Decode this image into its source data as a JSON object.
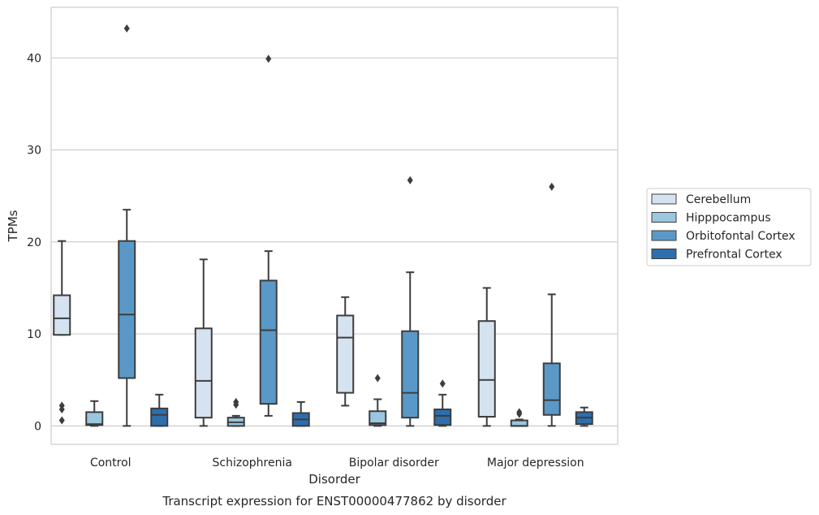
{
  "chart_data": {
    "type": "box",
    "title": "",
    "caption": "Transcript expression for ENST00000477862 by disorder",
    "xlabel": "Disorder",
    "ylabel": "TPMs",
    "ylim": [
      -2,
      45.5
    ],
    "yticks": [
      0,
      10,
      20,
      30,
      40
    ],
    "grid": "horizontal",
    "legend_position": "right",
    "categories": [
      "Control",
      "Schizophrenia",
      "Bipolar disorder",
      "Major depression"
    ],
    "series": [
      {
        "name": "Cerebellum",
        "color": "#d5e3f1",
        "boxes": [
          {
            "whisker_low": 9.9,
            "q1": 9.9,
            "median": 11.7,
            "q3": 14.2,
            "whisker_high": 20.1,
            "outliers": [
              2.2,
              1.8,
              0.6
            ]
          },
          {
            "whisker_low": 0.0,
            "q1": 0.9,
            "median": 4.9,
            "q3": 10.6,
            "whisker_high": 18.1,
            "outliers": []
          },
          {
            "whisker_low": 2.2,
            "q1": 3.6,
            "median": 9.6,
            "q3": 12.0,
            "whisker_high": 14.0,
            "outliers": []
          },
          {
            "whisker_low": 0.0,
            "q1": 1.0,
            "median": 5.0,
            "q3": 11.4,
            "whisker_high": 15.0,
            "outliers": []
          }
        ]
      },
      {
        "name": "Hipppocampus",
        "color": "#9ac6e0",
        "boxes": [
          {
            "whisker_low": 0.0,
            "q1": 0.1,
            "median": 0.2,
            "q3": 1.5,
            "whisker_high": 2.7,
            "outliers": []
          },
          {
            "whisker_low": 0.0,
            "q1": 0.0,
            "median": 0.4,
            "q3": 0.9,
            "whisker_high": 1.1,
            "outliers": [
              2.6,
              2.3
            ]
          },
          {
            "whisker_low": 0.0,
            "q1": 0.1,
            "median": 0.3,
            "q3": 1.6,
            "whisker_high": 2.9,
            "outliers": [
              5.2
            ]
          },
          {
            "whisker_low": 0.0,
            "q1": 0.0,
            "median": 0.0,
            "q3": 0.6,
            "whisker_high": 0.7,
            "outliers": [
              1.5,
              1.3
            ]
          }
        ]
      },
      {
        "name": "Orbitofontal Cortex",
        "color": "#5a99c7",
        "boxes": [
          {
            "whisker_low": 0.0,
            "q1": 5.2,
            "median": 12.1,
            "q3": 20.1,
            "whisker_high": 23.5,
            "outliers": [
              43.2
            ]
          },
          {
            "whisker_low": 1.1,
            "q1": 2.4,
            "median": 10.4,
            "q3": 15.8,
            "whisker_high": 19.0,
            "outliers": [
              39.9
            ]
          },
          {
            "whisker_low": 0.0,
            "q1": 0.9,
            "median": 3.6,
            "q3": 10.3,
            "whisker_high": 16.7,
            "outliers": [
              26.7
            ]
          },
          {
            "whisker_low": 0.0,
            "q1": 1.2,
            "median": 2.8,
            "q3": 6.8,
            "whisker_high": 14.3,
            "outliers": [
              26.0
            ]
          }
        ]
      },
      {
        "name": "Prefrontal Cortex",
        "color": "#2d6ead",
        "boxes": [
          {
            "whisker_low": 0.0,
            "q1": 0.0,
            "median": 1.2,
            "q3": 1.9,
            "whisker_high": 3.4,
            "outliers": []
          },
          {
            "whisker_low": 0.0,
            "q1": 0.0,
            "median": 0.7,
            "q3": 1.4,
            "whisker_high": 2.6,
            "outliers": []
          },
          {
            "whisker_low": 0.0,
            "q1": 0.1,
            "median": 1.1,
            "q3": 1.8,
            "whisker_high": 3.4,
            "outliers": [
              4.6
            ]
          },
          {
            "whisker_low": 0.0,
            "q1": 0.2,
            "median": 0.9,
            "q3": 1.5,
            "whisker_high": 2.0,
            "outliers": []
          }
        ]
      }
    ]
  }
}
